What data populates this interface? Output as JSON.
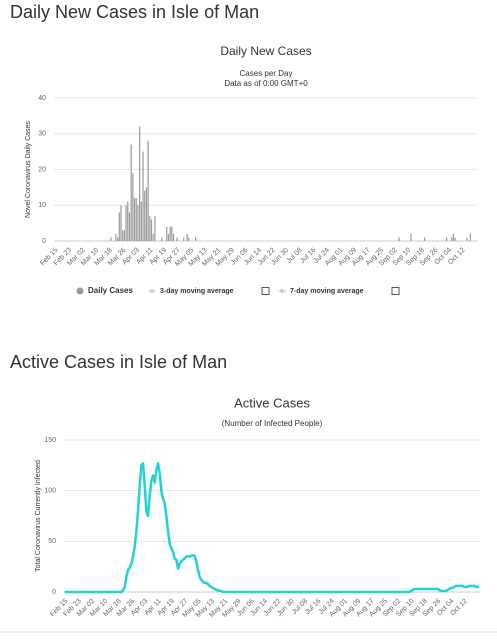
{
  "headings": [
    "Daily New Cases in Isle of Man",
    "Active Cases in Isle of Man"
  ],
  "chart_data": [
    {
      "type": "bar",
      "title": "Daily New Cases",
      "subtitle": "Cases per Day",
      "note": "Data as of 0:00 GMT+0",
      "ylabel": "Novel Coronavirus Daily Cases",
      "ylim": [
        0,
        40
      ],
      "yticks": [
        0,
        10,
        20,
        30,
        40
      ],
      "legend_inactive": [
        "3-day moving average",
        "7-day moving average"
      ],
      "categories": [
        "Feb 15",
        null,
        null,
        null,
        null,
        null,
        null,
        null,
        "Feb 23",
        null,
        null,
        null,
        null,
        null,
        null,
        null,
        "Mar 02",
        null,
        null,
        null,
        null,
        null,
        null,
        null,
        "Mar 10",
        null,
        null,
        null,
        null,
        null,
        null,
        null,
        "Mar 18",
        null,
        null,
        null,
        null,
        null,
        null,
        null,
        "Mar 26",
        null,
        null,
        null,
        null,
        null,
        null,
        null,
        "Apr 03",
        null,
        null,
        null,
        null,
        null,
        null,
        null,
        "Apr 11",
        null,
        null,
        null,
        null,
        null,
        null,
        null,
        "Apr 19",
        null,
        null,
        null,
        null,
        null,
        null,
        null,
        "Apr 27",
        null,
        null,
        null,
        null,
        null,
        null,
        null,
        "May 05",
        null,
        null,
        null,
        null,
        null,
        null,
        null,
        "May 13",
        null,
        null,
        null,
        null,
        null,
        null,
        null,
        "May 21",
        null,
        null,
        null,
        null,
        null,
        null,
        null,
        "May 29",
        null,
        null,
        null,
        null,
        null,
        null,
        null,
        "Jun 06",
        null,
        null,
        null,
        null,
        null,
        null,
        null,
        "Jun 14",
        null,
        null,
        null,
        null,
        null,
        null,
        null,
        "Jun 22",
        null,
        null,
        null,
        null,
        null,
        null,
        null,
        "Jun 30",
        null,
        null,
        null,
        null,
        null,
        null,
        null,
        "Jul 08",
        null,
        null,
        null,
        null,
        null,
        null,
        null,
        "Jul 16",
        null,
        null,
        null,
        null,
        null,
        null,
        null,
        "Jul 24",
        null,
        null,
        null,
        null,
        null,
        null,
        null,
        "Aug 01",
        null,
        null,
        null,
        null,
        null,
        null,
        null,
        "Aug 09",
        null,
        null,
        null,
        null,
        null,
        null,
        null,
        "Aug 17",
        null,
        null,
        null,
        null,
        null,
        null,
        null,
        "Aug 25",
        null,
        null,
        null,
        null,
        null,
        null,
        null,
        "Sep 02",
        null,
        null,
        null,
        null,
        null,
        null,
        null,
        "Sep 10",
        null,
        null,
        null,
        null,
        null,
        null,
        null,
        "Sep 18",
        null,
        null,
        null,
        null,
        null,
        null,
        null,
        "Sep 26",
        null,
        null,
        null,
        null,
        null,
        null,
        null,
        "Oct 04",
        null,
        null,
        null,
        null,
        null,
        null,
        null,
        "Oct 12",
        null,
        null,
        null,
        null,
        null,
        null,
        null,
        null,
        null
      ],
      "series": [
        {
          "name": "Daily Cases",
          "color": "#999999",
          "values": [
            0,
            0,
            0,
            0,
            0,
            0,
            0,
            0,
            0,
            0,
            0,
            0,
            0,
            0,
            0,
            0,
            0,
            0,
            0,
            0,
            0,
            0,
            0,
            0,
            0,
            0,
            0,
            0,
            0,
            0,
            0,
            0,
            0,
            1,
            0,
            0,
            2,
            1,
            8,
            10,
            3,
            3,
            10,
            11,
            8,
            27,
            19,
            12,
            12,
            10,
            32,
            11,
            25,
            14,
            15,
            28,
            7,
            6,
            2,
            7,
            0,
            0,
            0,
            1,
            0,
            0,
            4,
            2,
            4,
            4,
            2,
            0,
            1,
            0,
            0,
            0,
            1,
            0,
            2,
            1,
            0,
            0,
            0,
            1,
            0,
            0,
            0,
            0,
            0,
            0,
            0,
            0,
            0,
            0,
            0,
            0,
            0,
            0,
            0,
            0,
            0,
            0,
            0,
            0,
            0,
            0,
            0,
            0,
            0,
            0,
            0,
            0,
            0,
            0,
            0,
            0,
            0,
            0,
            0,
            0,
            0,
            0,
            0,
            0,
            0,
            0,
            0,
            0,
            0,
            0,
            0,
            0,
            0,
            0,
            0,
            0,
            0,
            0,
            0,
            0,
            0,
            0,
            0,
            0,
            0,
            0,
            0,
            0,
            0,
            0,
            0,
            0,
            0,
            0,
            0,
            0,
            0,
            0,
            0,
            0,
            0,
            0,
            0,
            0,
            0,
            0,
            0,
            0,
            0,
            0,
            0,
            0,
            0,
            0,
            0,
            0,
            0,
            0,
            0,
            0,
            0,
            0,
            0,
            0,
            0,
            0,
            0,
            0,
            0,
            0,
            0,
            0,
            0,
            0,
            0,
            0,
            0,
            0,
            0,
            0,
            0,
            0,
            0,
            1,
            0,
            0,
            0,
            0,
            0,
            0,
            2,
            0,
            0,
            0,
            0,
            0,
            0,
            0,
            1,
            0,
            0,
            0,
            0,
            0,
            0,
            0,
            0,
            0,
            0,
            0,
            0,
            1,
            0,
            0,
            1,
            2,
            1,
            0,
            0,
            0,
            0,
            0,
            0,
            1,
            0,
            2,
            0,
            0,
            0,
            0
          ]
        }
      ]
    },
    {
      "type": "line",
      "title": "Active Cases",
      "subtitle": "(Number of Infected People)",
      "ylabel": "Total Coronavirus Currently Infected",
      "ylim": [
        0,
        150
      ],
      "yticks": [
        0,
        50,
        100,
        150
      ],
      "categories": [
        "Feb 15",
        null,
        null,
        null,
        null,
        null,
        null,
        null,
        "Feb 23",
        null,
        null,
        null,
        null,
        null,
        null,
        null,
        "Mar 02",
        null,
        null,
        null,
        null,
        null,
        null,
        null,
        "Mar 10",
        null,
        null,
        null,
        null,
        null,
        null,
        null,
        "Mar 18",
        null,
        null,
        null,
        null,
        null,
        null,
        null,
        "Mar 26",
        null,
        null,
        null,
        null,
        null,
        null,
        null,
        "Apr 03",
        null,
        null,
        null,
        null,
        null,
        null,
        null,
        "Apr 11",
        null,
        null,
        null,
        null,
        null,
        null,
        null,
        "Apr 19",
        null,
        null,
        null,
        null,
        null,
        null,
        null,
        "Apr 27",
        null,
        null,
        null,
        null,
        null,
        null,
        null,
        "May 05",
        null,
        null,
        null,
        null,
        null,
        null,
        null,
        "May 13",
        null,
        null,
        null,
        null,
        null,
        null,
        null,
        "May 21",
        null,
        null,
        null,
        null,
        null,
        null,
        null,
        "May 29",
        null,
        null,
        null,
        null,
        null,
        null,
        null,
        "Jun 06",
        null,
        null,
        null,
        null,
        null,
        null,
        null,
        "Jun 14",
        null,
        null,
        null,
        null,
        null,
        null,
        null,
        "Jun 22",
        null,
        null,
        null,
        null,
        null,
        null,
        null,
        "Jun 30",
        null,
        null,
        null,
        null,
        null,
        null,
        null,
        "Jul 08",
        null,
        null,
        null,
        null,
        null,
        null,
        null,
        "Jul 16",
        null,
        null,
        null,
        null,
        null,
        null,
        null,
        "Jul 24",
        null,
        null,
        null,
        null,
        null,
        null,
        null,
        "Aug 01",
        null,
        null,
        null,
        null,
        null,
        null,
        null,
        "Aug 09",
        null,
        null,
        null,
        null,
        null,
        null,
        null,
        "Aug 17",
        null,
        null,
        null,
        null,
        null,
        null,
        null,
        "Aug 25",
        null,
        null,
        null,
        null,
        null,
        null,
        null,
        "Sep 02",
        null,
        null,
        null,
        null,
        null,
        null,
        null,
        "Sep 10",
        null,
        null,
        null,
        null,
        null,
        null,
        null,
        "Sep 18",
        null,
        null,
        null,
        null,
        null,
        null,
        null,
        "Sep 26",
        null,
        null,
        null,
        null,
        null,
        null,
        null,
        "Oct 04",
        null,
        null,
        null,
        null,
        null,
        null,
        null,
        "Oct 12",
        null,
        null,
        null,
        null,
        null,
        null,
        null,
        null,
        null
      ],
      "series": [
        {
          "name": "Currently Infected",
          "color": "#1fd3d6",
          "values": [
            0,
            0,
            0,
            0,
            0,
            0,
            0,
            0,
            0,
            0,
            0,
            0,
            0,
            0,
            0,
            0,
            0,
            0,
            0,
            0,
            0,
            0,
            0,
            0,
            0,
            0,
            0,
            0,
            0,
            0,
            0,
            0,
            0,
            0,
            0,
            2,
            5,
            15,
            22,
            24,
            28,
            35,
            45,
            60,
            80,
            105,
            125,
            127,
            105,
            80,
            75,
            95,
            110,
            115,
            108,
            120,
            127,
            118,
            100,
            92,
            88,
            75,
            60,
            48,
            43,
            40,
            33,
            32,
            23,
            28,
            30,
            32,
            33,
            35,
            35,
            35,
            36,
            36,
            36,
            30,
            22,
            15,
            12,
            10,
            9,
            9,
            8,
            6,
            5,
            4,
            3,
            2,
            2,
            1,
            1,
            0,
            0,
            0,
            0,
            0,
            0,
            0,
            0,
            0,
            0,
            0,
            0,
            0,
            0,
            0,
            0,
            0,
            0,
            0,
            0,
            0,
            0,
            0,
            0,
            0,
            0,
            0,
            0,
            0,
            0,
            0,
            0,
            0,
            0,
            0,
            0,
            0,
            0,
            0,
            0,
            0,
            0,
            0,
            0,
            0,
            0,
            0,
            0,
            0,
            0,
            0,
            0,
            0,
            0,
            0,
            0,
            0,
            0,
            0,
            0,
            0,
            0,
            0,
            0,
            0,
            0,
            0,
            0,
            0,
            0,
            0,
            0,
            0,
            0,
            0,
            0,
            0,
            0,
            0,
            0,
            0,
            0,
            0,
            0,
            0,
            0,
            0,
            0,
            0,
            0,
            0,
            0,
            0,
            0,
            0,
            0,
            0,
            0,
            0,
            0,
            0,
            0,
            0,
            0,
            0,
            0,
            0,
            0,
            0,
            0,
            0,
            0,
            0,
            1,
            2,
            3,
            3,
            3,
            3,
            3,
            3,
            3,
            3,
            3,
            3,
            3,
            3,
            3,
            3,
            3,
            2,
            1,
            1,
            1,
            1,
            2,
            3,
            4,
            4,
            5,
            6,
            6,
            6,
            6,
            6,
            5,
            5,
            5,
            6,
            6,
            6,
            6,
            5,
            5,
            5
          ]
        }
      ]
    }
  ]
}
